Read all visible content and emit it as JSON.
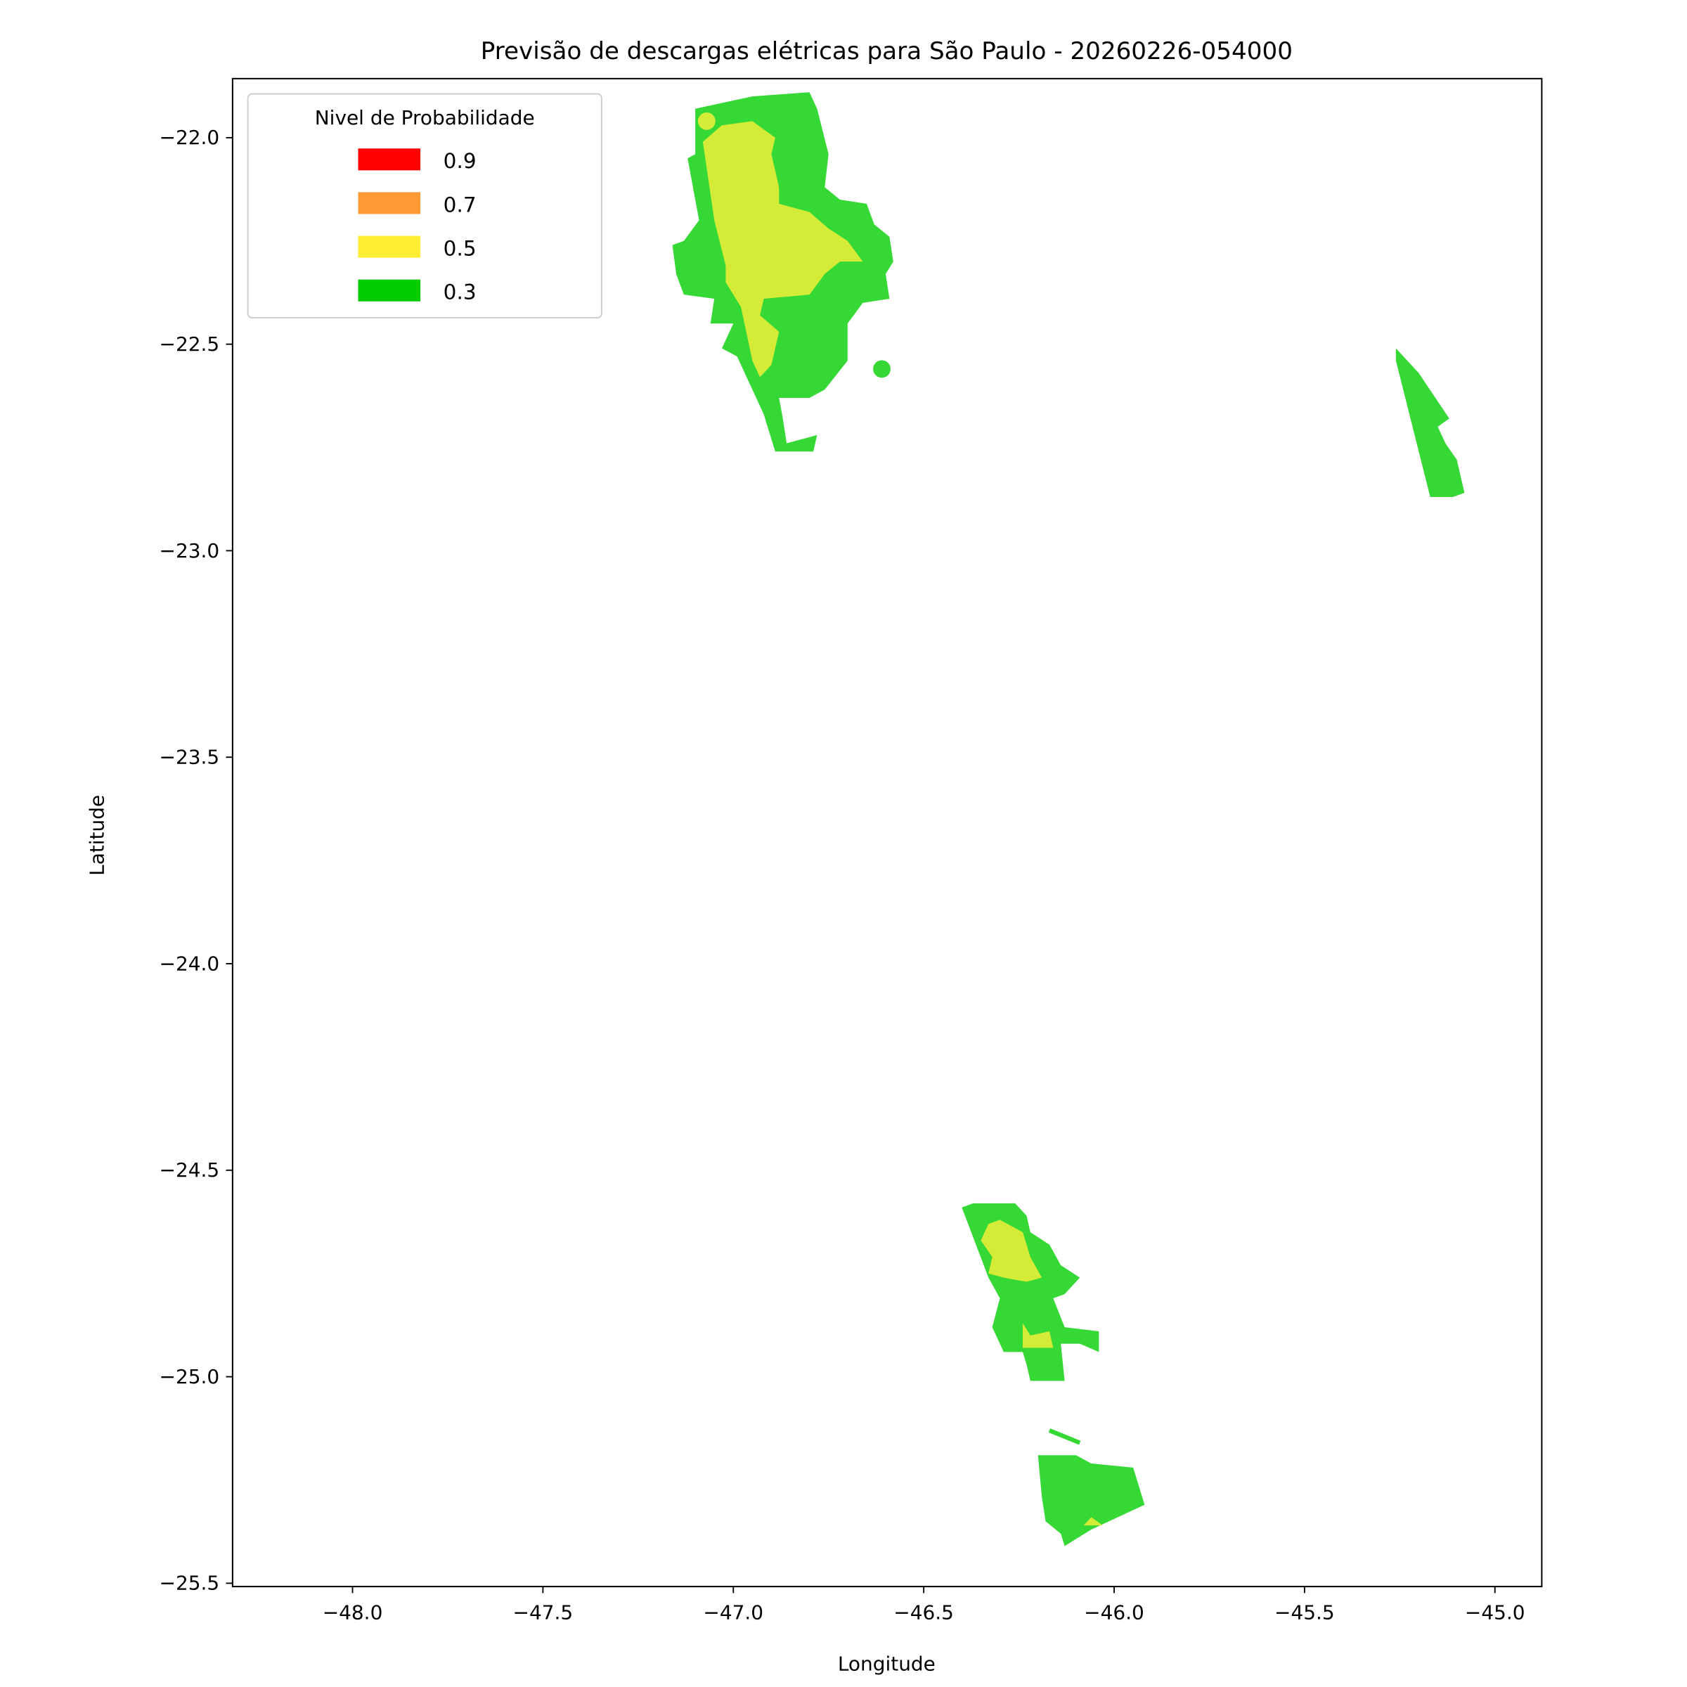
{
  "chart_data": {
    "type": "filled-contour-map",
    "title": "Previsão de descargas elétricas para São Paulo - 20260226-054000",
    "xlabel": "Longitude",
    "ylabel": "Latitude",
    "xlim": [
      -48.315,
      -44.877
    ],
    "ylim": [
      -25.508,
      -21.857
    ],
    "xticks": [
      -48.0,
      -47.5,
      -47.0,
      -46.5,
      -46.0,
      -45.5,
      -45.0
    ],
    "xtick_labels": [
      "−48.0",
      "−47.5",
      "−47.0",
      "−46.5",
      "−46.0",
      "−45.5",
      "−45.0"
    ],
    "yticks": [
      -22.0,
      -22.5,
      -23.0,
      -23.5,
      -24.0,
      -24.5,
      -25.0,
      -25.5
    ],
    "ytick_labels": [
      "−22.0",
      "−22.5",
      "−23.0",
      "−23.5",
      "−24.0",
      "−24.5",
      "−25.0",
      "−25.5"
    ],
    "grid": false,
    "legend": {
      "title": "Nivel de Probabilidade",
      "placement": "top-left",
      "entries": [
        {
          "label": "0.9",
          "color": "#ff0000"
        },
        {
          "label": "0.7",
          "color": "#ff9933"
        },
        {
          "label": "0.5",
          "color": "#ffee33"
        },
        {
          "label": "0.3",
          "color": "#00cc00"
        }
      ]
    },
    "fill_colors": {
      "0.3": "#36d836",
      "0.5": "#d4ec38"
    },
    "regions": [
      {
        "level": "0.3",
        "points": [
          [
            -47.1,
            -21.93
          ],
          [
            -46.95,
            -21.9
          ],
          [
            -46.8,
            -21.89
          ],
          [
            -46.78,
            -21.93
          ],
          [
            -46.75,
            -22.04
          ],
          [
            -46.76,
            -22.12
          ],
          [
            -46.72,
            -22.15
          ],
          [
            -46.65,
            -22.16
          ],
          [
            -46.63,
            -22.21
          ],
          [
            -46.59,
            -22.24
          ],
          [
            -46.58,
            -22.3
          ],
          [
            -46.6,
            -22.33
          ],
          [
            -46.59,
            -22.39
          ],
          [
            -46.66,
            -22.4
          ],
          [
            -46.7,
            -22.45
          ],
          [
            -46.7,
            -22.54
          ],
          [
            -46.76,
            -22.61
          ],
          [
            -46.8,
            -22.63
          ],
          [
            -46.88,
            -22.63
          ],
          [
            -46.87,
            -22.68
          ],
          [
            -46.86,
            -22.74
          ],
          [
            -46.78,
            -22.72
          ],
          [
            -46.79,
            -22.76
          ],
          [
            -46.89,
            -22.76
          ],
          [
            -46.92,
            -22.67
          ],
          [
            -46.95,
            -22.61
          ],
          [
            -46.99,
            -22.53
          ],
          [
            -47.03,
            -22.51
          ],
          [
            -47.0,
            -22.45
          ],
          [
            -47.06,
            -22.45
          ],
          [
            -47.05,
            -22.39
          ],
          [
            -47.13,
            -22.38
          ],
          [
            -47.15,
            -22.33
          ],
          [
            -47.16,
            -22.26
          ],
          [
            -47.13,
            -22.25
          ],
          [
            -47.09,
            -22.2
          ],
          [
            -47.12,
            -22.05
          ],
          [
            -47.1,
            -22.04
          ]
        ]
      },
      {
        "level": "0.5",
        "points": [
          [
            -47.08,
            -22.01
          ],
          [
            -47.03,
            -21.97
          ],
          [
            -46.95,
            -21.96
          ],
          [
            -46.92,
            -21.98
          ],
          [
            -46.89,
            -22.0
          ],
          [
            -46.9,
            -22.04
          ],
          [
            -46.88,
            -22.12
          ],
          [
            -46.88,
            -22.16
          ],
          [
            -46.8,
            -22.18
          ],
          [
            -46.75,
            -22.22
          ],
          [
            -46.7,
            -22.25
          ],
          [
            -46.66,
            -22.3
          ],
          [
            -46.72,
            -22.3
          ],
          [
            -46.76,
            -22.33
          ],
          [
            -46.8,
            -22.38
          ],
          [
            -46.92,
            -22.39
          ],
          [
            -46.93,
            -22.43
          ],
          [
            -46.88,
            -22.47
          ],
          [
            -46.9,
            -22.55
          ],
          [
            -46.93,
            -22.58
          ],
          [
            -46.95,
            -22.54
          ],
          [
            -46.98,
            -22.41
          ],
          [
            -47.02,
            -22.35
          ],
          [
            -47.02,
            -22.31
          ],
          [
            -47.05,
            -22.2
          ]
        ]
      },
      {
        "level": "0.3",
        "points": [
          [
            -45.26,
            -22.51
          ],
          [
            -45.2,
            -22.57
          ],
          [
            -45.12,
            -22.68
          ],
          [
            -45.15,
            -22.7
          ],
          [
            -45.13,
            -22.74
          ],
          [
            -45.1,
            -22.78
          ],
          [
            -45.08,
            -22.86
          ],
          [
            -45.11,
            -22.87
          ],
          [
            -45.17,
            -22.87
          ],
          [
            -45.26,
            -22.54
          ]
        ]
      },
      {
        "level": "0.3",
        "points": [
          [
            -46.4,
            -24.59
          ],
          [
            -46.37,
            -24.58
          ],
          [
            -46.26,
            -24.58
          ],
          [
            -46.23,
            -24.61
          ],
          [
            -46.22,
            -24.65
          ],
          [
            -46.17,
            -24.68
          ],
          [
            -46.14,
            -24.73
          ],
          [
            -46.09,
            -24.76
          ],
          [
            -46.13,
            -24.8
          ],
          [
            -46.16,
            -24.81
          ],
          [
            -46.13,
            -24.88
          ],
          [
            -46.04,
            -24.89
          ],
          [
            -46.04,
            -24.94
          ],
          [
            -46.09,
            -24.92
          ],
          [
            -46.14,
            -24.92
          ],
          [
            -46.13,
            -25.01
          ],
          [
            -46.22,
            -25.01
          ],
          [
            -46.23,
            -24.97
          ],
          [
            -46.24,
            -24.94
          ],
          [
            -46.29,
            -24.94
          ],
          [
            -46.32,
            -24.88
          ],
          [
            -46.3,
            -24.81
          ],
          [
            -46.33,
            -24.76
          ]
        ]
      },
      {
        "level": "0.5",
        "points": [
          [
            -46.33,
            -24.63
          ],
          [
            -46.3,
            -24.62
          ],
          [
            -46.24,
            -24.65
          ],
          [
            -46.22,
            -24.71
          ],
          [
            -46.19,
            -24.76
          ],
          [
            -46.23,
            -24.77
          ],
          [
            -46.29,
            -24.76
          ],
          [
            -46.33,
            -24.75
          ],
          [
            -46.32,
            -24.71
          ],
          [
            -46.35,
            -24.67
          ]
        ]
      },
      {
        "level": "0.5",
        "points": [
          [
            -46.24,
            -24.87
          ],
          [
            -46.22,
            -24.9
          ],
          [
            -46.17,
            -24.89
          ],
          [
            -46.16,
            -24.93
          ],
          [
            -46.24,
            -24.93
          ]
        ]
      },
      {
        "level": "0.3",
        "points": [
          [
            -46.2,
            -25.19
          ],
          [
            -46.1,
            -25.19
          ],
          [
            -46.06,
            -25.21
          ],
          [
            -45.95,
            -25.22
          ],
          [
            -45.92,
            -25.31
          ],
          [
            -46.06,
            -25.37
          ],
          [
            -46.13,
            -25.41
          ],
          [
            -46.14,
            -25.38
          ],
          [
            -46.18,
            -25.35
          ],
          [
            -46.19,
            -25.29
          ]
        ]
      },
      {
        "level": "0.5",
        "points": [
          [
            -46.08,
            -25.36
          ],
          [
            -46.06,
            -25.34
          ],
          [
            -46.03,
            -25.36
          ]
        ]
      }
    ],
    "spots": [
      {
        "level": "0.5",
        "lon": -47.07,
        "lat": -21.96
      },
      {
        "level": "0.3",
        "lon": -46.61,
        "lat": -22.56
      }
    ],
    "segments": [
      {
        "level": "0.3",
        "from": [
          -46.17,
          -25.13
        ],
        "to": [
          -46.09,
          -25.16
        ]
      }
    ]
  }
}
